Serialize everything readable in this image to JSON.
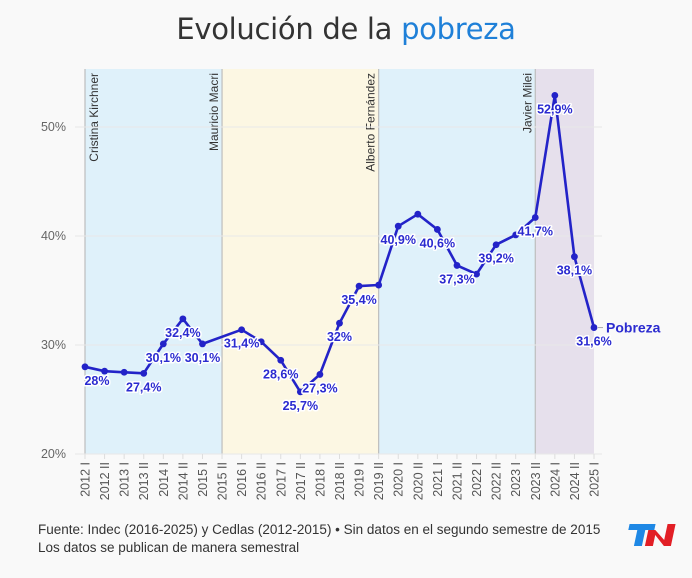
{
  "title": {
    "prefix": "Evolución de la ",
    "highlight": "pobreza"
  },
  "chart_data": {
    "type": "line",
    "title": "Evolución de la pobreza",
    "categories": [
      "2012 I",
      "2012 II",
      "2013 I",
      "2013 II",
      "2014 I",
      "2014 II",
      "2015 I",
      "2015 II",
      "2016 I",
      "2016 II",
      "2017 I",
      "2017 II",
      "2018 I",
      "2018 II",
      "2019 I",
      "2019 II",
      "2020 I",
      "2020 II",
      "2021 I",
      "2021 II",
      "2022 I",
      "2022 II",
      "2023 I",
      "2023 II",
      "2024 I",
      "2024 II",
      "2025 I"
    ],
    "series": [
      {
        "name": "Pobreza",
        "color": "#2323c8",
        "values": [
          28.0,
          27.6,
          27.5,
          27.4,
          30.1,
          32.4,
          30.1,
          null,
          31.4,
          30.3,
          28.6,
          25.7,
          27.3,
          32.0,
          35.4,
          35.5,
          40.9,
          42.0,
          40.6,
          37.3,
          36.5,
          39.2,
          40.1,
          41.7,
          52.9,
          38.1,
          31.6
        ],
        "data_labels": {
          "0": "28%",
          "3": "27,4%",
          "4": "30,1%",
          "5": "32,4%",
          "6": "30,1%",
          "8": "31,4%",
          "10": "28,6%",
          "11": "25,7%",
          "12": "27,3%",
          "13": "32%",
          "14": "35,4%",
          "16": "40,9%",
          "18": "40,6%",
          "19": "37,3%",
          "21": "39,2%",
          "23": "41,7%",
          "24": "52,9%",
          "25": "38,1%",
          "26": "31,6%"
        }
      }
    ],
    "ylim": [
      20,
      55
    ],
    "yticks": [
      20,
      30,
      40,
      50
    ],
    "ytick_labels": [
      "20%",
      "30%",
      "40%",
      "50%"
    ],
    "grid": "horizontal",
    "periods": [
      {
        "label": "Cristina Kirchner",
        "start": "2012 I",
        "end": "2015 II",
        "color": "#dff1fa"
      },
      {
        "label": "Mauricio Macri",
        "start": "2015 II",
        "end": "2019 II",
        "color": "#fcf7e3"
      },
      {
        "label": "Alberto Fernández",
        "start": "2019 II",
        "end": "2023 II",
        "color": "#dff1fa"
      },
      {
        "label": "Javier Milei",
        "start": "2023 II",
        "end": "2025 I",
        "color": "#e6e0ec"
      }
    ]
  },
  "footer": {
    "line1": "Fuente: Indec (2016-2025) y Cedlas (2012-2015) • Sin datos en el segundo semestre de 2015",
    "line2": "Los datos se publican de manera semestral"
  },
  "logo": {
    "text": "TN",
    "colors": [
      "#1e88e5",
      "#e21f26"
    ]
  }
}
